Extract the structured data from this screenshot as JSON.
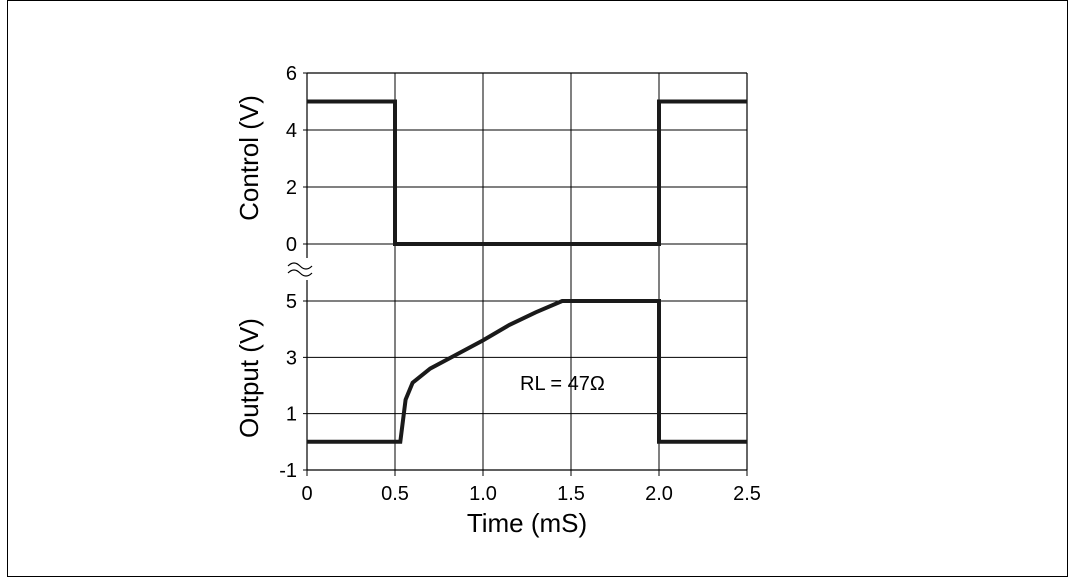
{
  "chart_data": {
    "type": "line",
    "xlabel": "Time (mS)",
    "xticks": [
      "0",
      "0.5",
      "1.0",
      "1.5",
      "2.0",
      "2.5"
    ],
    "xlim": [
      0,
      2.5
    ],
    "panels": [
      {
        "id": "control",
        "ylabel": "Control (V)",
        "yticks": [
          "6",
          "4",
          "2",
          "0"
        ],
        "ylim": [
          0,
          6
        ],
        "series": [
          {
            "x": [
              0,
              0.5,
              0.5,
              2.0,
              2.0,
              2.5
            ],
            "y": [
              5,
              5,
              0,
              0,
              5,
              5
            ]
          }
        ]
      },
      {
        "id": "output",
        "ylabel": "Output (V)",
        "yticks": [
          "5",
          "3",
          "1",
          "-1"
        ],
        "ylim": [
          -1,
          6
        ],
        "annotation": "RL = 47Ω",
        "series": [
          {
            "x": [
              0,
              0.53,
              0.56,
              0.6,
              0.7,
              0.85,
              1.0,
              1.15,
              1.3,
              1.45,
              2.0,
              2.0,
              2.5
            ],
            "y": [
              0,
              0,
              1.5,
              2.1,
              2.6,
              3.1,
              3.6,
              4.15,
              4.6,
              5.0,
              5.0,
              0,
              0
            ]
          }
        ]
      }
    ],
    "grid": true,
    "axis_break": true
  }
}
